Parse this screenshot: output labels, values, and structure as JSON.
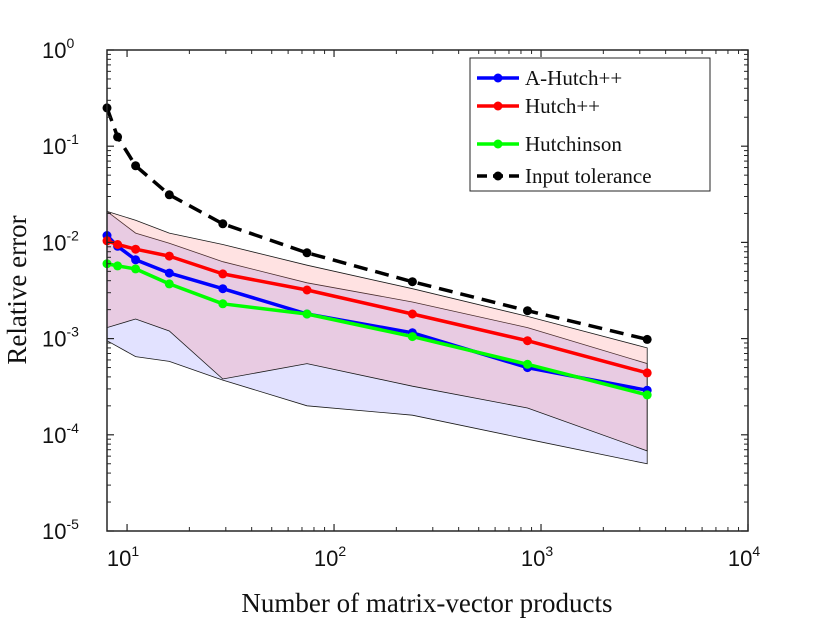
{
  "chart_data": {
    "type": "line",
    "xscale": "log",
    "yscale": "log",
    "xlabel": "Number of matrix-vector products",
    "ylabel": "Relative error",
    "xlim": [
      8,
      10000
    ],
    "ylim": [
      1e-05,
      1
    ],
    "grid": false,
    "legend_position": "top-right",
    "xticks": [
      {
        "base": "10",
        "exp": "1"
      },
      {
        "base": "10",
        "exp": "2"
      },
      {
        "base": "10",
        "exp": "3"
      },
      {
        "base": "10",
        "exp": "4"
      }
    ],
    "yticks": [
      {
        "base": "10",
        "exp": "0"
      },
      {
        "base": "10",
        "exp": "-1"
      },
      {
        "base": "10",
        "exp": "-2"
      },
      {
        "base": "10",
        "exp": "-3"
      },
      {
        "base": "10",
        "exp": "-4"
      },
      {
        "base": "10",
        "exp": "-5"
      }
    ],
    "x": [
      8,
      9,
      11,
      16,
      29,
      74,
      239,
      860,
      3260
    ],
    "series": [
      {
        "name": "A-Hutch++",
        "color": "#0000ff",
        "dashed": false,
        "values": [
          0.0118,
          0.0091,
          0.0066,
          0.0048,
          0.0033,
          0.0018,
          0.00115,
          0.0005,
          0.00029
        ]
      },
      {
        "name": "Hutch++",
        "color": "#ff0000",
        "dashed": false,
        "values": [
          0.0104,
          0.0095,
          0.0085,
          0.0072,
          0.0047,
          0.0032,
          0.0018,
          0.00095,
          0.00044
        ]
      },
      {
        "name": "Hutchinson",
        "color": "#00ff00",
        "dashed": false,
        "values": [
          0.006,
          0.0057,
          0.0053,
          0.0037,
          0.0023,
          0.0018,
          0.00105,
          0.00054,
          0.00026
        ]
      },
      {
        "name": "Input tolerance",
        "color": "#000000",
        "dashed": true,
        "values": [
          0.25,
          0.125,
          0.0625,
          0.03125,
          0.0156,
          0.0078,
          0.0039,
          0.00195,
          0.00098
        ]
      }
    ],
    "bands": [
      {
        "name": "A-Hutch++ range",
        "color": "#7b7bff",
        "opacity": 0.22,
        "x": [
          8,
          11,
          16,
          29,
          74,
          239,
          860,
          3260
        ],
        "lower": [
          0.00095,
          0.00065,
          0.00058,
          0.00037,
          0.0002,
          0.00016,
          9e-05,
          5e-05
        ],
        "upper": [
          0.021,
          0.0125,
          0.0098,
          0.0063,
          0.0038,
          0.0024,
          0.0013,
          0.00055
        ]
      },
      {
        "name": "Hutch++ range",
        "color": "#ff7b7b",
        "opacity": 0.22,
        "x": [
          8,
          11,
          16,
          29,
          74,
          239,
          860,
          3260
        ],
        "lower": [
          0.0013,
          0.0016,
          0.0012,
          0.00038,
          0.00055,
          0.00032,
          0.00019,
          6.8e-05
        ],
        "upper": [
          0.021,
          0.017,
          0.0125,
          0.0095,
          0.0058,
          0.0033,
          0.0017,
          0.0008
        ]
      }
    ]
  }
}
